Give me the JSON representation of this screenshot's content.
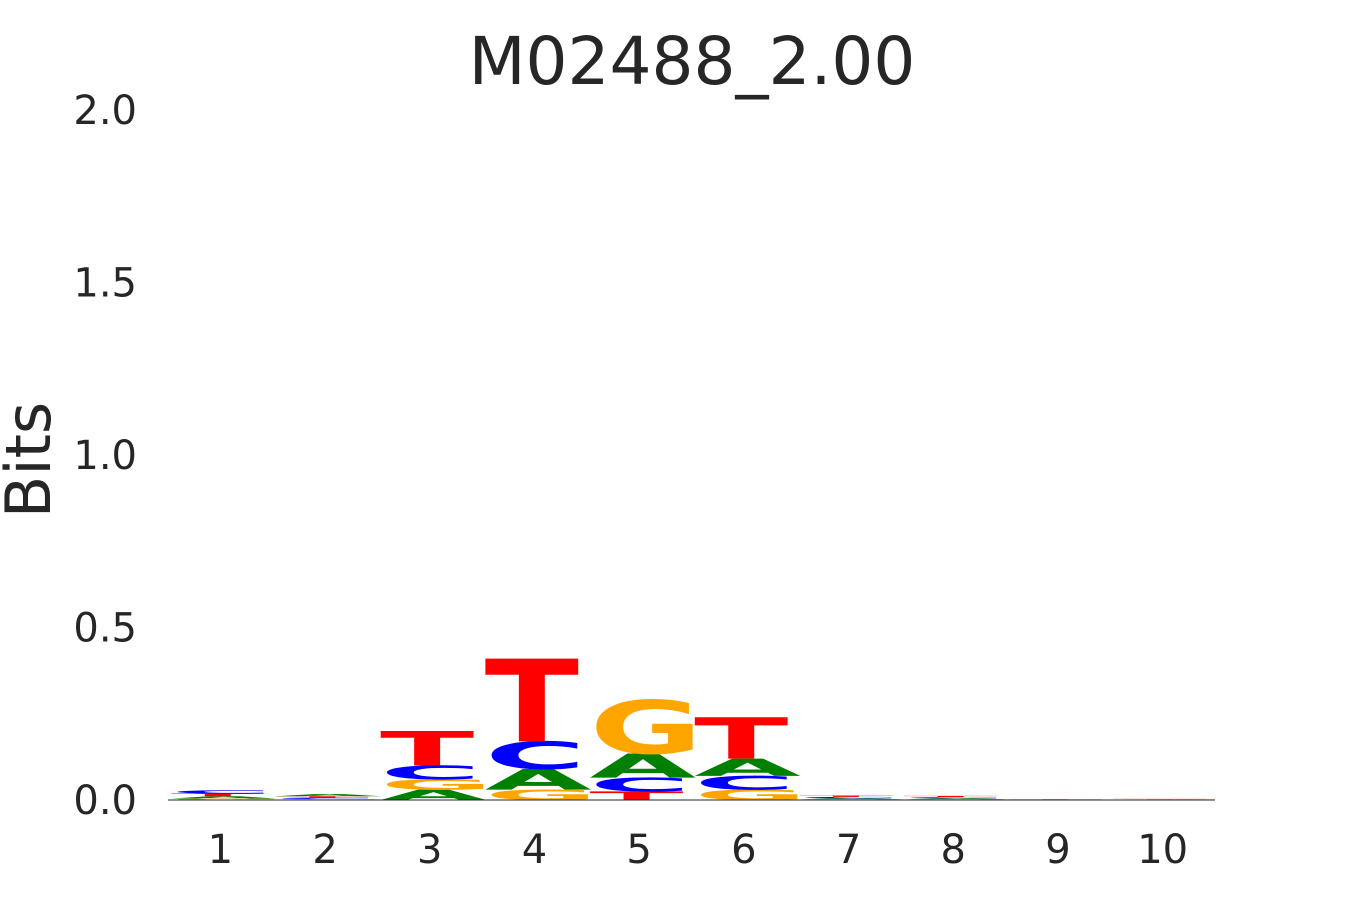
{
  "chart_data": {
    "type": "sequence-logo",
    "title": "M02488_2.00",
    "xlabel": "",
    "ylabel": "Bits",
    "ylim": [
      0,
      2
    ],
    "yticks": [
      "0.0",
      "0.5",
      "1.0",
      "1.5",
      "2.0"
    ],
    "grid": false,
    "legend": "none",
    "colors": {
      "A": "#008000",
      "C": "#0000ff",
      "G": "#ffa500",
      "T": "#ff0000"
    },
    "positions": [
      {
        "label": "1",
        "letters": [
          {
            "base": "G",
            "bits": 0.004
          },
          {
            "base": "A",
            "bits": 0.007
          },
          {
            "base": "T",
            "bits": 0.008
          },
          {
            "base": "C",
            "bits": 0.009
          }
        ]
      },
      {
        "label": "2",
        "letters": [
          {
            "base": "G",
            "bits": 0.003
          },
          {
            "base": "C",
            "bits": 0.004
          },
          {
            "base": "T",
            "bits": 0.004
          },
          {
            "base": "A",
            "bits": 0.006
          }
        ]
      },
      {
        "label": "3",
        "letters": [
          {
            "base": "A",
            "bits": 0.03
          },
          {
            "base": "G",
            "bits": 0.03
          },
          {
            "base": "C",
            "bits": 0.04
          },
          {
            "base": "T",
            "bits": 0.1
          }
        ]
      },
      {
        "label": "4",
        "letters": [
          {
            "base": "G",
            "bits": 0.03
          },
          {
            "base": "A",
            "bits": 0.06
          },
          {
            "base": "C",
            "bits": 0.08
          },
          {
            "base": "T",
            "bits": 0.24
          }
        ]
      },
      {
        "label": "5",
        "letters": [
          {
            "base": "T",
            "bits": 0.025
          },
          {
            "base": "C",
            "bits": 0.04
          },
          {
            "base": "A",
            "bits": 0.07
          },
          {
            "base": "G",
            "bits": 0.155
          }
        ]
      },
      {
        "label": "6",
        "letters": [
          {
            "base": "G",
            "bits": 0.03
          },
          {
            "base": "C",
            "bits": 0.04
          },
          {
            "base": "A",
            "bits": 0.05
          },
          {
            "base": "T",
            "bits": 0.12
          }
        ]
      },
      {
        "label": "7",
        "letters": [
          {
            "base": "G",
            "bits": 0.002
          },
          {
            "base": "A",
            "bits": 0.003
          },
          {
            "base": "C",
            "bits": 0.004
          },
          {
            "base": "T",
            "bits": 0.004
          }
        ]
      },
      {
        "label": "8",
        "letters": [
          {
            "base": "G",
            "bits": 0.002
          },
          {
            "base": "A",
            "bits": 0.003
          },
          {
            "base": "C",
            "bits": 0.003
          },
          {
            "base": "T",
            "bits": 0.004
          }
        ]
      },
      {
        "label": "9",
        "letters": [
          {
            "base": "A",
            "bits": 0.0005
          },
          {
            "base": "C",
            "bits": 0.0005
          },
          {
            "base": "G",
            "bits": 0.0005
          },
          {
            "base": "T",
            "bits": 0.0005
          }
        ]
      },
      {
        "label": "10",
        "letters": [
          {
            "base": "A",
            "bits": 0.0008
          },
          {
            "base": "C",
            "bits": 0.0008
          },
          {
            "base": "G",
            "bits": 0.0008
          },
          {
            "base": "T",
            "bits": 0.0008
          }
        ]
      }
    ]
  }
}
